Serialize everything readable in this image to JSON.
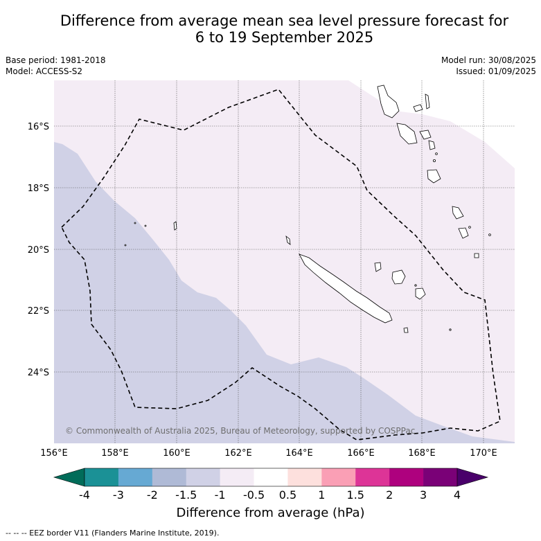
{
  "title_line1": "Difference from average mean sea level pressure forecast for",
  "title_line2": "6 to 19 September 2025",
  "meta_left": [
    "Base period: 1981-2018",
    "Model: ACCESS-S2"
  ],
  "meta_right": [
    "Model run: 30/08/2025",
    "Issued: 01/09/2025"
  ],
  "copyright": "© Commonwealth of Australia 2025, Bureau of Meteorology, supported by COSPPac",
  "map": {
    "lon_ticks": [
      "156°E",
      "158°E",
      "160°E",
      "162°E",
      "164°E",
      "166°E",
      "168°E",
      "170°E"
    ],
    "lat_ticks": [
      "16°S",
      "18°S",
      "20°S",
      "22°S",
      "24°S"
    ]
  },
  "colorbar": {
    "title": "Difference from average (hPa)",
    "labels": [
      "-4",
      "-3",
      "-2",
      "-1.5",
      "-1",
      "-0.5",
      "0.5",
      "1",
      "1.5",
      "2",
      "3",
      "4"
    ],
    "colors": [
      "#1b9196",
      "#66a9d3",
      "#afbad6",
      "#d0d1e6",
      "#f4ecf5",
      "#ffffff",
      "#fde0dd",
      "#fa9fb5",
      "#dd3497",
      "#ae017e",
      "#7a0177"
    ],
    "under_color": "#016c59",
    "over_color": "#49006a"
  },
  "footnote": "--  --  -- EEZ border V11 (Flanders Marine Institute, 2019)."
}
